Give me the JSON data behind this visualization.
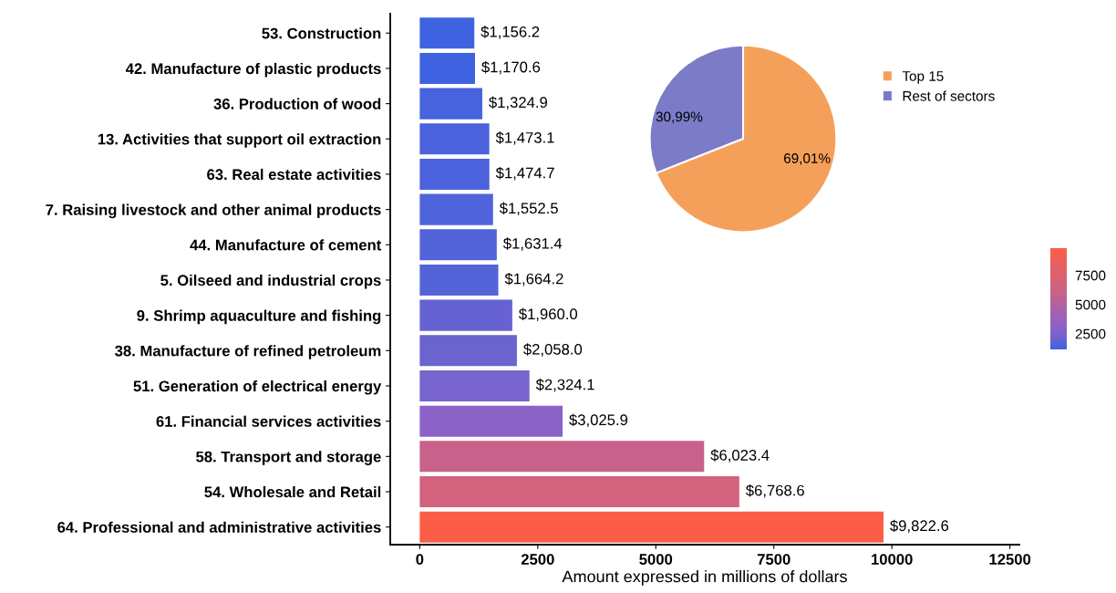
{
  "chart_data": [
    {
      "type": "bar",
      "orientation": "horizontal",
      "xlabel": "Amount expressed in millions of dollars",
      "categories": [
        "53. Construction",
        "42. Manufacture of plastic products",
        "36. Production of wood",
        "13. Activities that support oil extraction",
        "63. Real estate activities",
        "7. Raising livestock and other animal products",
        "44. Manufacture of cement",
        "5. Oilseed and industrial crops",
        "9. Shrimp aquaculture and fishing",
        "38. Manufacture of refined petroleum",
        "51. Generation of electrical energy",
        "61. Financial services activities",
        "58. Transport and storage",
        "54. Wholesale and Retail",
        "64. Professional and administrative activities"
      ],
      "values": [
        1156.2,
        1170.6,
        1324.9,
        1473.1,
        1474.7,
        1552.5,
        1631.4,
        1664.2,
        1960.0,
        2058.0,
        2324.1,
        3025.9,
        6023.4,
        6768.6,
        9822.6
      ],
      "colors": [
        "#3f63e0",
        "#3f63e0",
        "#4763de",
        "#4b62dc",
        "#4b62dc",
        "#4f63da",
        "#5364d8",
        "#5464d8",
        "#6762d2",
        "#6b64cf",
        "#7764cc",
        "#8b62c8",
        "#c8628a",
        "#d3627e",
        "#fc5d46"
      ],
      "value_labels": [
        "$1,156.2",
        "$1,170.6",
        "$1,324.9",
        "$1,473.1",
        "$1,474.7",
        "$1,552.5",
        "$1,631.4",
        "$1,664.2",
        "$1,960.0",
        "$2,058.0",
        "$2,324.1",
        "$3,025.9",
        "$6,023.4",
        "$6,768.6",
        "$9,822.6"
      ],
      "xlim": [
        -625,
        12700
      ],
      "xticks": [
        0,
        2500,
        5000,
        7500,
        10000,
        12500
      ],
      "clim": [
        1156.2,
        9822.6
      ],
      "cticks": [
        2500,
        5000,
        7500
      ],
      "grid": false,
      "legend": false
    },
    {
      "type": "pie",
      "categories": [
        "Top 15",
        "Rest of sectors"
      ],
      "values": [
        69.01,
        30.99
      ],
      "colors": [
        "#f5a05a",
        "#7b7bc8"
      ],
      "value_labels": [
        "69,01%",
        "30,99%"
      ],
      "legend": "right"
    }
  ]
}
